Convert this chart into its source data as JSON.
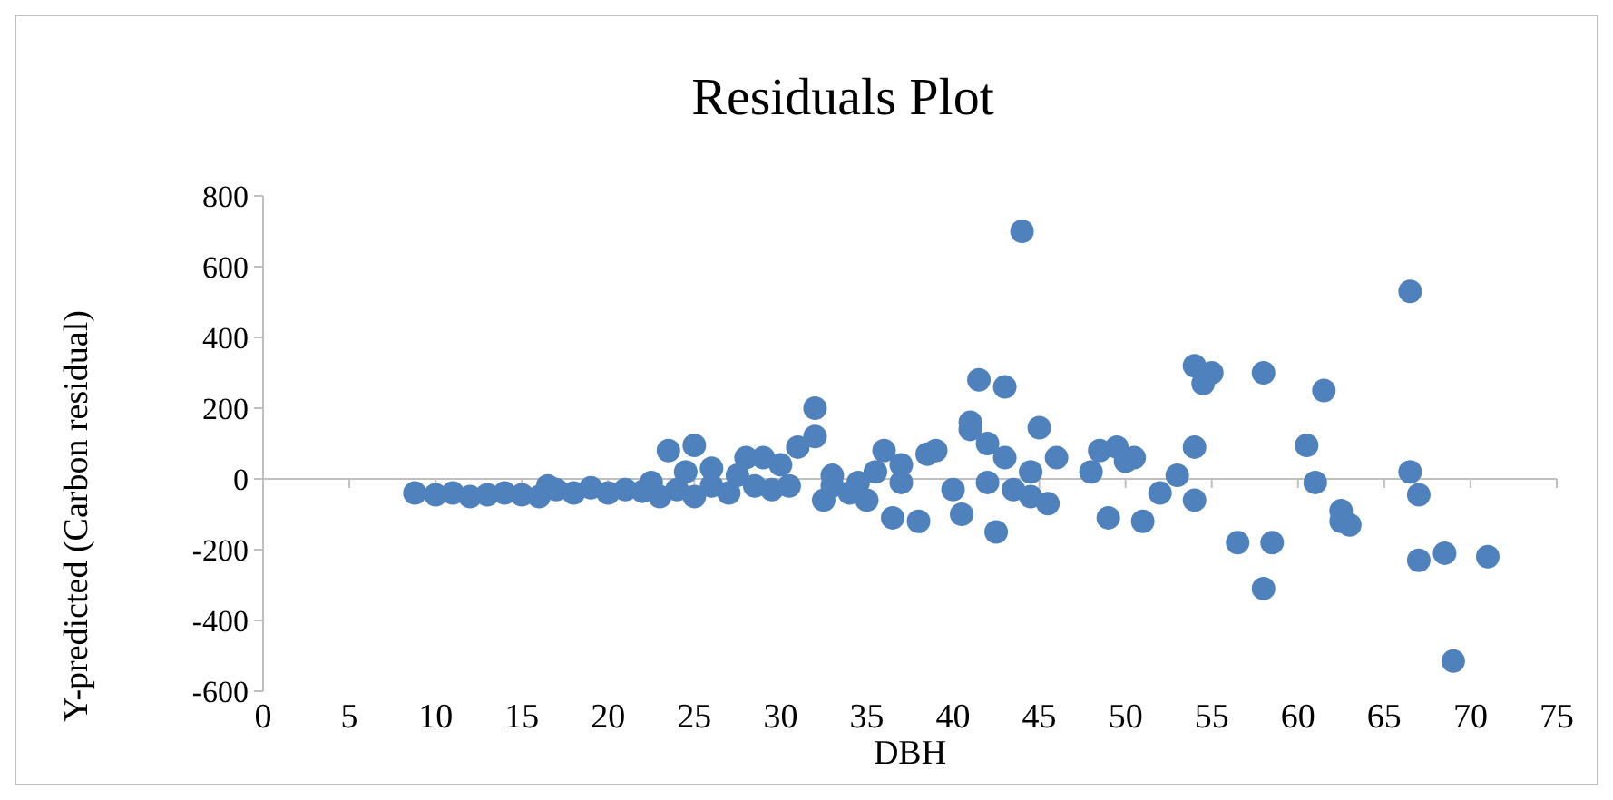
{
  "chart_data": {
    "type": "scatter",
    "title": "Residuals Plot",
    "xlabel": "DBH",
    "ylabel": "Y-predicted (Carbon residual)",
    "xlim": [
      0,
      75
    ],
    "xticks": [
      0,
      5,
      10,
      15,
      20,
      25,
      30,
      35,
      40,
      45,
      50,
      55,
      60,
      65,
      70,
      75
    ],
    "ylim": [
      -600,
      800
    ],
    "yticks": [
      -600,
      -400,
      -200,
      0,
      200,
      400,
      600,
      800
    ],
    "marker": "circle",
    "series": [
      {
        "color": "#4f81bd",
        "x": [
          8.8,
          10,
          11,
          12,
          13,
          14,
          15,
          16,
          16.5,
          17,
          18,
          19,
          20,
          21,
          22,
          22.5,
          23,
          23.5,
          24,
          24.5,
          25,
          25,
          26,
          26,
          27,
          27.5,
          28,
          28.5,
          29,
          29.5,
          30,
          30.5,
          31,
          32,
          32,
          32.5,
          33,
          33,
          34,
          34.5,
          35,
          35.5,
          36,
          36.5,
          37,
          37,
          38,
          38.5,
          39,
          40,
          40.5,
          41,
          41,
          41.5,
          42,
          42,
          42.5,
          43,
          43,
          43.5,
          44,
          44.5,
          44.5,
          45,
          45.5,
          46,
          48,
          48.5,
          49,
          49.5,
          50,
          50.5,
          51,
          52,
          53,
          54,
          54,
          54,
          54.5,
          55,
          56.5,
          58,
          58,
          58.5,
          60.5,
          61,
          61.5,
          62.5,
          62.5,
          63,
          66.5,
          66.5,
          67,
          67,
          68.5,
          69,
          71
        ],
        "values": [
          -40,
          -45,
          -40,
          -50,
          -45,
          -40,
          -45,
          -50,
          -20,
          -30,
          -40,
          -25,
          -40,
          -30,
          -35,
          -10,
          -50,
          80,
          -30,
          20,
          95,
          -50,
          -20,
          30,
          -40,
          10,
          60,
          -20,
          60,
          -30,
          40,
          -20,
          90,
          120,
          200,
          -60,
          -20,
          10,
          -40,
          -10,
          -60,
          20,
          80,
          -110,
          40,
          -10,
          -120,
          70,
          80,
          -30,
          -100,
          160,
          140,
          280,
          -10,
          100,
          -150,
          260,
          60,
          -30,
          700,
          20,
          -50,
          145,
          -70,
          60,
          20,
          80,
          -110,
          90,
          50,
          60,
          -120,
          -40,
          10,
          -60,
          90,
          320,
          270,
          300,
          -180,
          -310,
          300,
          -180,
          95,
          -10,
          250,
          -120,
          -90,
          -130,
          530,
          20,
          -230,
          -45,
          -210,
          -515,
          -220
        ]
      }
    ]
  }
}
